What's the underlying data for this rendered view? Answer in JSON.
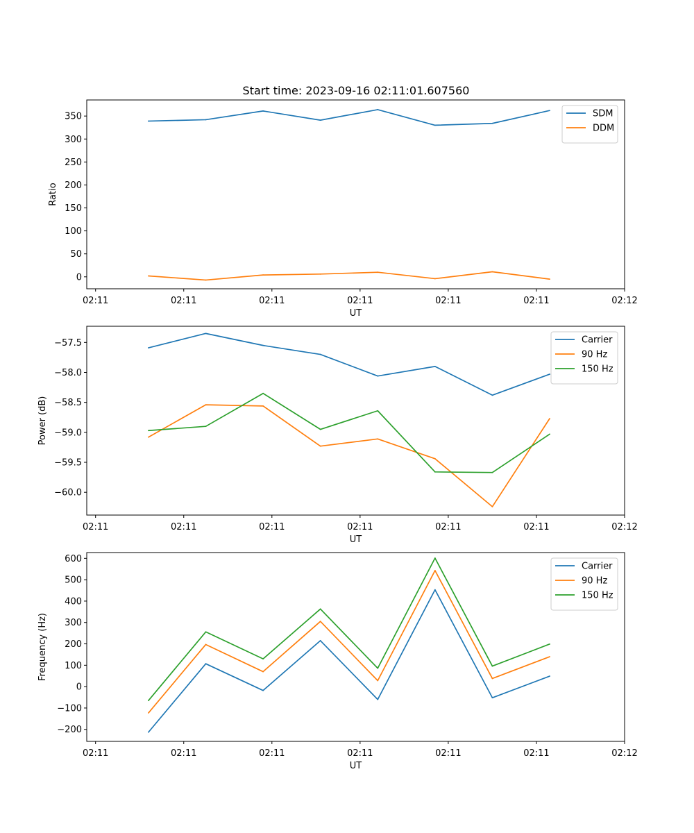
{
  "figure_title": "Start time: 2023-09-16 02:11:01.607560",
  "colors": {
    "blue": "#1f77b4",
    "orange": "#ff7f0e",
    "green": "#2ca02c"
  },
  "chart_data": [
    {
      "type": "line",
      "name": "ratio",
      "title": "Start time: 2023-09-16 02:11:01.607560",
      "xlabel": "UT",
      "ylabel": "Ratio",
      "x": [
        0.7,
        1.35,
        2.0,
        2.65,
        3.3,
        3.95,
        4.6,
        5.25
      ],
      "xlim": [
        0.0,
        6.1
      ],
      "xticks": [
        0.1,
        1.1,
        2.1,
        3.1,
        4.1,
        5.1,
        6.1
      ],
      "xticklabels": [
        "02:11",
        "02:11",
        "02:11",
        "02:11",
        "02:11",
        "02:11",
        "02:12"
      ],
      "ylim": [
        -26,
        385
      ],
      "yticks": [
        0,
        50,
        100,
        150,
        200,
        250,
        300,
        350
      ],
      "legend_position": "top-right",
      "series": [
        {
          "name": "SDM",
          "color": "#1f77b4",
          "values": [
            339,
            342,
            361,
            341,
            364,
            330,
            334,
            362
          ]
        },
        {
          "name": "DDM",
          "color": "#ff7f0e",
          "values": [
            2,
            -7,
            4,
            6,
            10,
            -4,
            11,
            -5
          ]
        }
      ]
    },
    {
      "type": "line",
      "name": "power",
      "title": "",
      "xlabel": "UT",
      "ylabel": "Power (dB)",
      "x": [
        0.7,
        1.35,
        2.0,
        2.65,
        3.3,
        3.95,
        4.6,
        5.25
      ],
      "xlim": [
        0.0,
        6.1
      ],
      "xticks": [
        0.1,
        1.1,
        2.1,
        3.1,
        4.1,
        5.1,
        6.1
      ],
      "xticklabels": [
        "02:11",
        "02:11",
        "02:11",
        "02:11",
        "02:11",
        "02:11",
        "02:12"
      ],
      "ylim": [
        -60.38,
        -57.23
      ],
      "yticks": [
        -60.0,
        -59.5,
        -59.0,
        -58.5,
        -58.0,
        -57.5
      ],
      "yticklabels": [
        "−60.0",
        "−59.5",
        "−59.0",
        "−58.5",
        "−58.0",
        "−57.5"
      ],
      "legend_position": "top-right",
      "series": [
        {
          "name": "Carrier",
          "color": "#1f77b4",
          "values": [
            -57.59,
            -57.35,
            -57.55,
            -57.7,
            -58.06,
            -57.9,
            -58.38,
            -58.03
          ]
        },
        {
          "name": "90 Hz",
          "color": "#ff7f0e",
          "values": [
            -59.08,
            -58.54,
            -58.56,
            -59.23,
            -59.11,
            -59.44,
            -60.24,
            -58.77
          ]
        },
        {
          "name": "150 Hz",
          "color": "#2ca02c",
          "values": [
            -58.97,
            -58.9,
            -58.35,
            -58.95,
            -58.64,
            -59.66,
            -59.67,
            -59.03
          ]
        }
      ]
    },
    {
      "type": "line",
      "name": "frequency",
      "title": "",
      "xlabel": "UT",
      "ylabel": "Frequency (Hz)",
      "x": [
        0.7,
        1.35,
        2.0,
        2.65,
        3.3,
        3.95,
        4.6,
        5.25
      ],
      "xlim": [
        0.0,
        6.1
      ],
      "xticks": [
        0.1,
        1.1,
        2.1,
        3.1,
        4.1,
        5.1,
        6.1
      ],
      "xticklabels": [
        "02:11",
        "02:11",
        "02:11",
        "02:11",
        "02:11",
        "02:11",
        "02:12"
      ],
      "ylim": [
        -256,
        627
      ],
      "yticks": [
        -200,
        -100,
        0,
        100,
        200,
        300,
        400,
        500,
        600
      ],
      "yticklabels": [
        "−200",
        "−100",
        "0",
        "100",
        "200",
        "300",
        "400",
        "500",
        "600"
      ],
      "legend_position": "top-right",
      "series": [
        {
          "name": "Carrier",
          "color": "#1f77b4",
          "values": [
            -213,
            107,
            -18,
            215,
            -60,
            453,
            -52,
            49
          ]
        },
        {
          "name": "90 Hz",
          "color": "#ff7f0e",
          "values": [
            -123,
            197,
            70,
            305,
            28,
            543,
            38,
            140
          ]
        },
        {
          "name": "150 Hz",
          "color": "#2ca02c",
          "values": [
            -65,
            256,
            130,
            363,
            86,
            601,
            96,
            199
          ]
        }
      ]
    }
  ]
}
